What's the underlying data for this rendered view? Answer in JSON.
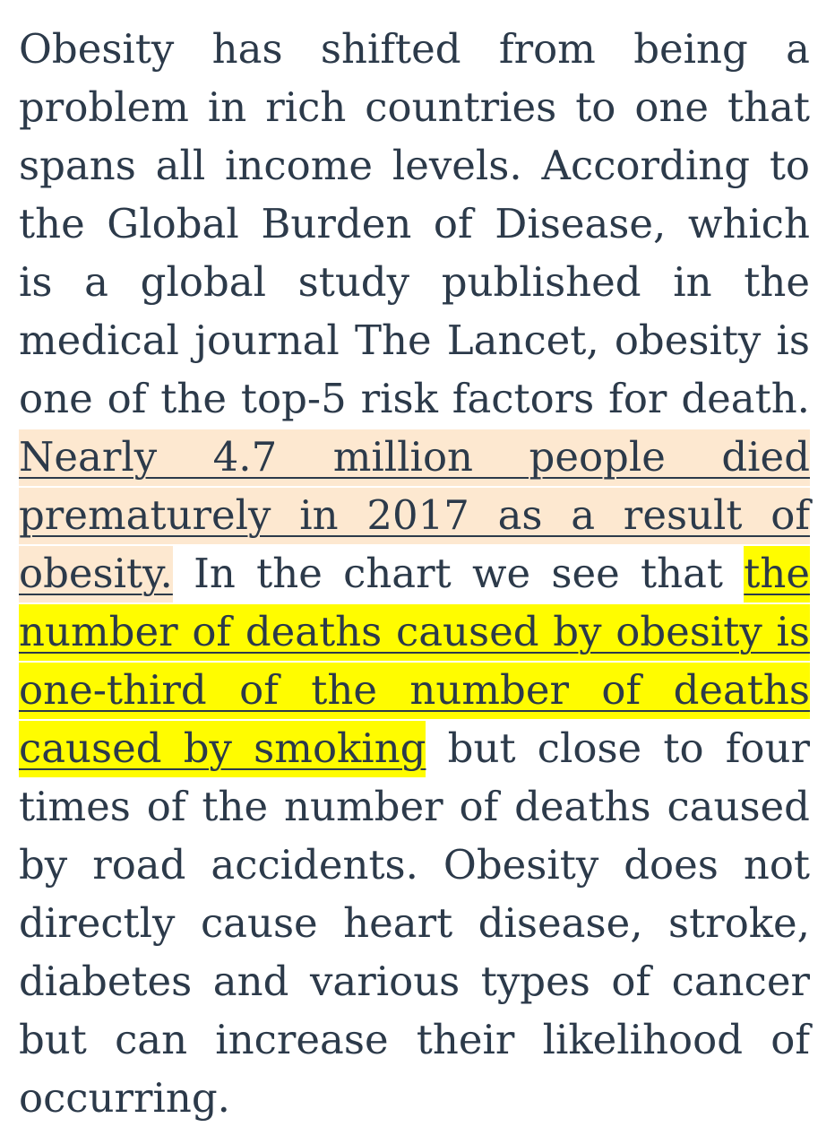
{
  "article": {
    "text_1": "Obesity has shifted from being a problem in rich countries to one that spans all income levels. According to the Global Burden of Disease, which is a global study published in the medical journal The Lancet, obesity is one of the top-5 risk factors for death. ",
    "highlight_1": "Nearly 4.7 million people died prematurely in 2017 as a result of obesity.",
    "text_2": " In the chart we see that ",
    "highlight_2": "the number of deaths caused by obesity is one-third of the number of deaths caused by smoking",
    "text_3": " but close to four times of the number of deaths caused by road accidents. Obesity does not directly cause heart disease, stroke, diabetes and various types of cancer but can increase their likelihood of occurring."
  },
  "colors": {
    "text": "#2c3a4a",
    "highlight_orange": "#fde8d0",
    "highlight_yellow": "#fffc00"
  }
}
